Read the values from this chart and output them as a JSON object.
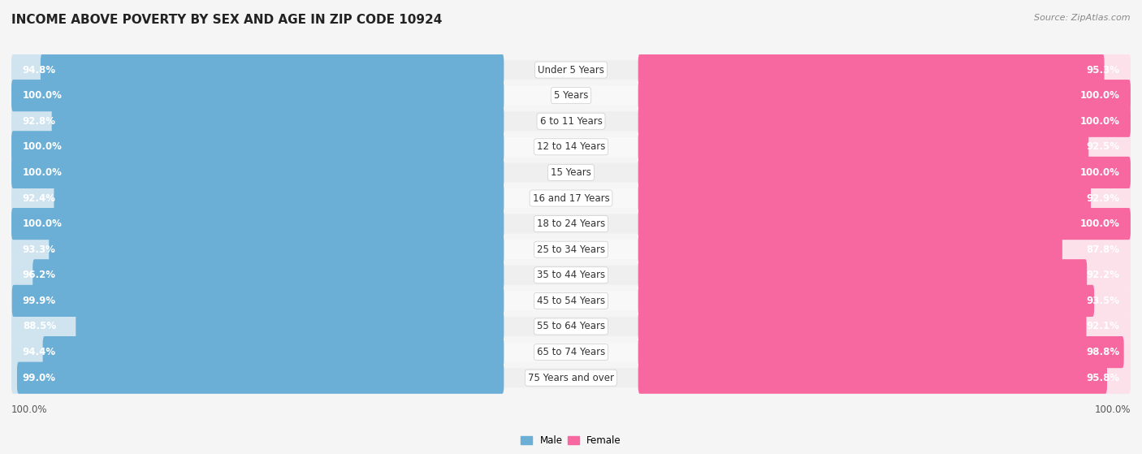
{
  "title": "INCOME ABOVE POVERTY BY SEX AND AGE IN ZIP CODE 10924",
  "source": "Source: ZipAtlas.com",
  "categories": [
    "Under 5 Years",
    "5 Years",
    "6 to 11 Years",
    "12 to 14 Years",
    "15 Years",
    "16 and 17 Years",
    "18 to 24 Years",
    "25 to 34 Years",
    "35 to 44 Years",
    "45 to 54 Years",
    "55 to 64 Years",
    "65 to 74 Years",
    "75 Years and over"
  ],
  "male_values": [
    94.8,
    100.0,
    92.8,
    100.0,
    100.0,
    92.4,
    100.0,
    93.3,
    96.2,
    99.9,
    88.5,
    94.4,
    99.0
  ],
  "female_values": [
    95.3,
    100.0,
    100.0,
    92.5,
    100.0,
    92.9,
    100.0,
    87.8,
    92.2,
    93.5,
    92.1,
    98.8,
    95.8
  ],
  "male_color": "#6baed6",
  "female_color": "#f768a1",
  "male_bg_color": "#d0e4f0",
  "female_bg_color": "#fce0ea",
  "background_color": "#f5f5f5",
  "row_bg_light": "#ebebeb",
  "row_bg_white": "#f5f5f5",
  "title_fontsize": 11,
  "label_fontsize": 8.5,
  "value_fontsize": 8.5,
  "tick_fontsize": 8.5,
  "max_val": 100.0
}
